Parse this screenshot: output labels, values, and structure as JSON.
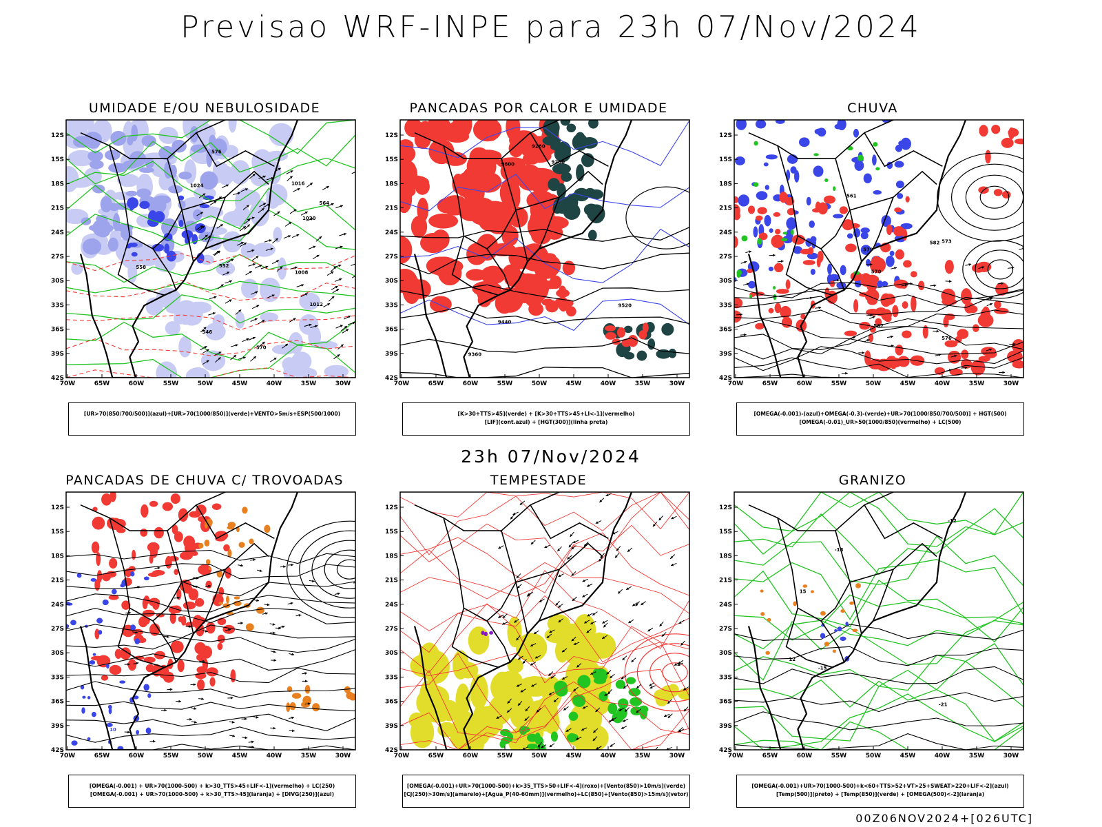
{
  "title": "Previsao WRF-INPE  para 23h 07/Nov/2024",
  "subtitle": "23h 07/Nov/2024",
  "footer": "00Z06NOV2024+[026UTC]",
  "axes": {
    "lat_labels": [
      "12S",
      "15S",
      "18S",
      "21S",
      "24S",
      "27S",
      "30S",
      "33S",
      "36S",
      "39S",
      "42S"
    ],
    "lon_labels": [
      "70W",
      "65W",
      "60W",
      "55W",
      "50W",
      "45W",
      "40W",
      "35W",
      "30W"
    ]
  },
  "colors": {
    "blue": "#3b46e8",
    "lavender": "#9ea4ec",
    "light_lavender": "#c8cbf3",
    "green": "#22c422",
    "red": "#f23a35",
    "dark_teal": "#1f4444",
    "yellow": "#e2dc2a",
    "orange": "#e8801f",
    "purple": "#8a1cc8"
  },
  "panels": [
    {
      "title": "UMIDADE E/OU NEBULOSIDADE",
      "legend_lines": [
        "[UR>70(850/700/500)](azul)+[UR>70(1000/850)](verde)+VENTO>5m/s+ESP(500/1000)"
      ],
      "contour_labels": [
        "1012",
        "1008",
        "1016",
        "1020",
        "1024",
        "570",
        "564",
        "558",
        "552",
        "546",
        "576"
      ]
    },
    {
      "title": "PANCADAS POR CALOR E UMIDADE",
      "legend_lines": [
        "[K>30+TTS>45](verde) + [K>30+TTS>45+LI<-1](vermelho)",
        "[LIF](cont.azul) + [HGT(300)](linha preta)"
      ],
      "contour_labels": [
        "9600",
        "9520",
        "9440",
        "9360",
        "9280",
        "9200"
      ]
    },
    {
      "title": "CHUVA",
      "legend_lines": [
        "[OMEGA(-0.001)-(azul)+OMEGA(-0.3)-(verde)+UR>70(1000/850/700/500)] + HGT(500)",
        "[OMEGA(-0.01)_UR>50(1000/850)(vermelho) + LC(500)"
      ],
      "contour_labels": [
        "582",
        "576",
        "573",
        "570",
        "567",
        "561",
        "579"
      ]
    },
    {
      "title": "PANCADAS DE CHUVA C/ TROVOADAS",
      "legend_lines": [
        "[OMEGA(-0.001) + UR>70(1000-500) + k>30_TTS>45+LIF<-1](vermelho) + LC(250)",
        "[OMEGA(-0.001) + UR>70(1000-500) + k>30_TTS>45](laranja) + [DIVG(250)](azul)"
      ],
      "contour_labels": [
        "10"
      ]
    },
    {
      "title": "TEMPESTADE",
      "legend_lines": [
        "[OMEGA(-0.001)+UR>70(1000-500)+k>35_TTS>50+LIF<-4](roxo)+[Vento(850)>10m/s](verde)",
        "[CJ(250)>30m/s](amarelo)+[Agua_P(40-60mm)](vermelho)+LC(850)+[Vento(850)>15m/s](vetor)"
      ],
      "contour_labels": []
    },
    {
      "title": "GRANIZO",
      "legend_lines": [
        "[OMEGA(-0.001)+UR>70(1000-500)+k<60+TTS>52+VT>25+SWEAT>220+LIF<-2](azul)",
        "[Temp(500)](preto) + [Temp(850)](verde) + [OMEGA(500)<-2](laranja)"
      ],
      "contour_labels": [
        "-12",
        "-15",
        "-18",
        "-21",
        "15",
        "12"
      ]
    }
  ]
}
